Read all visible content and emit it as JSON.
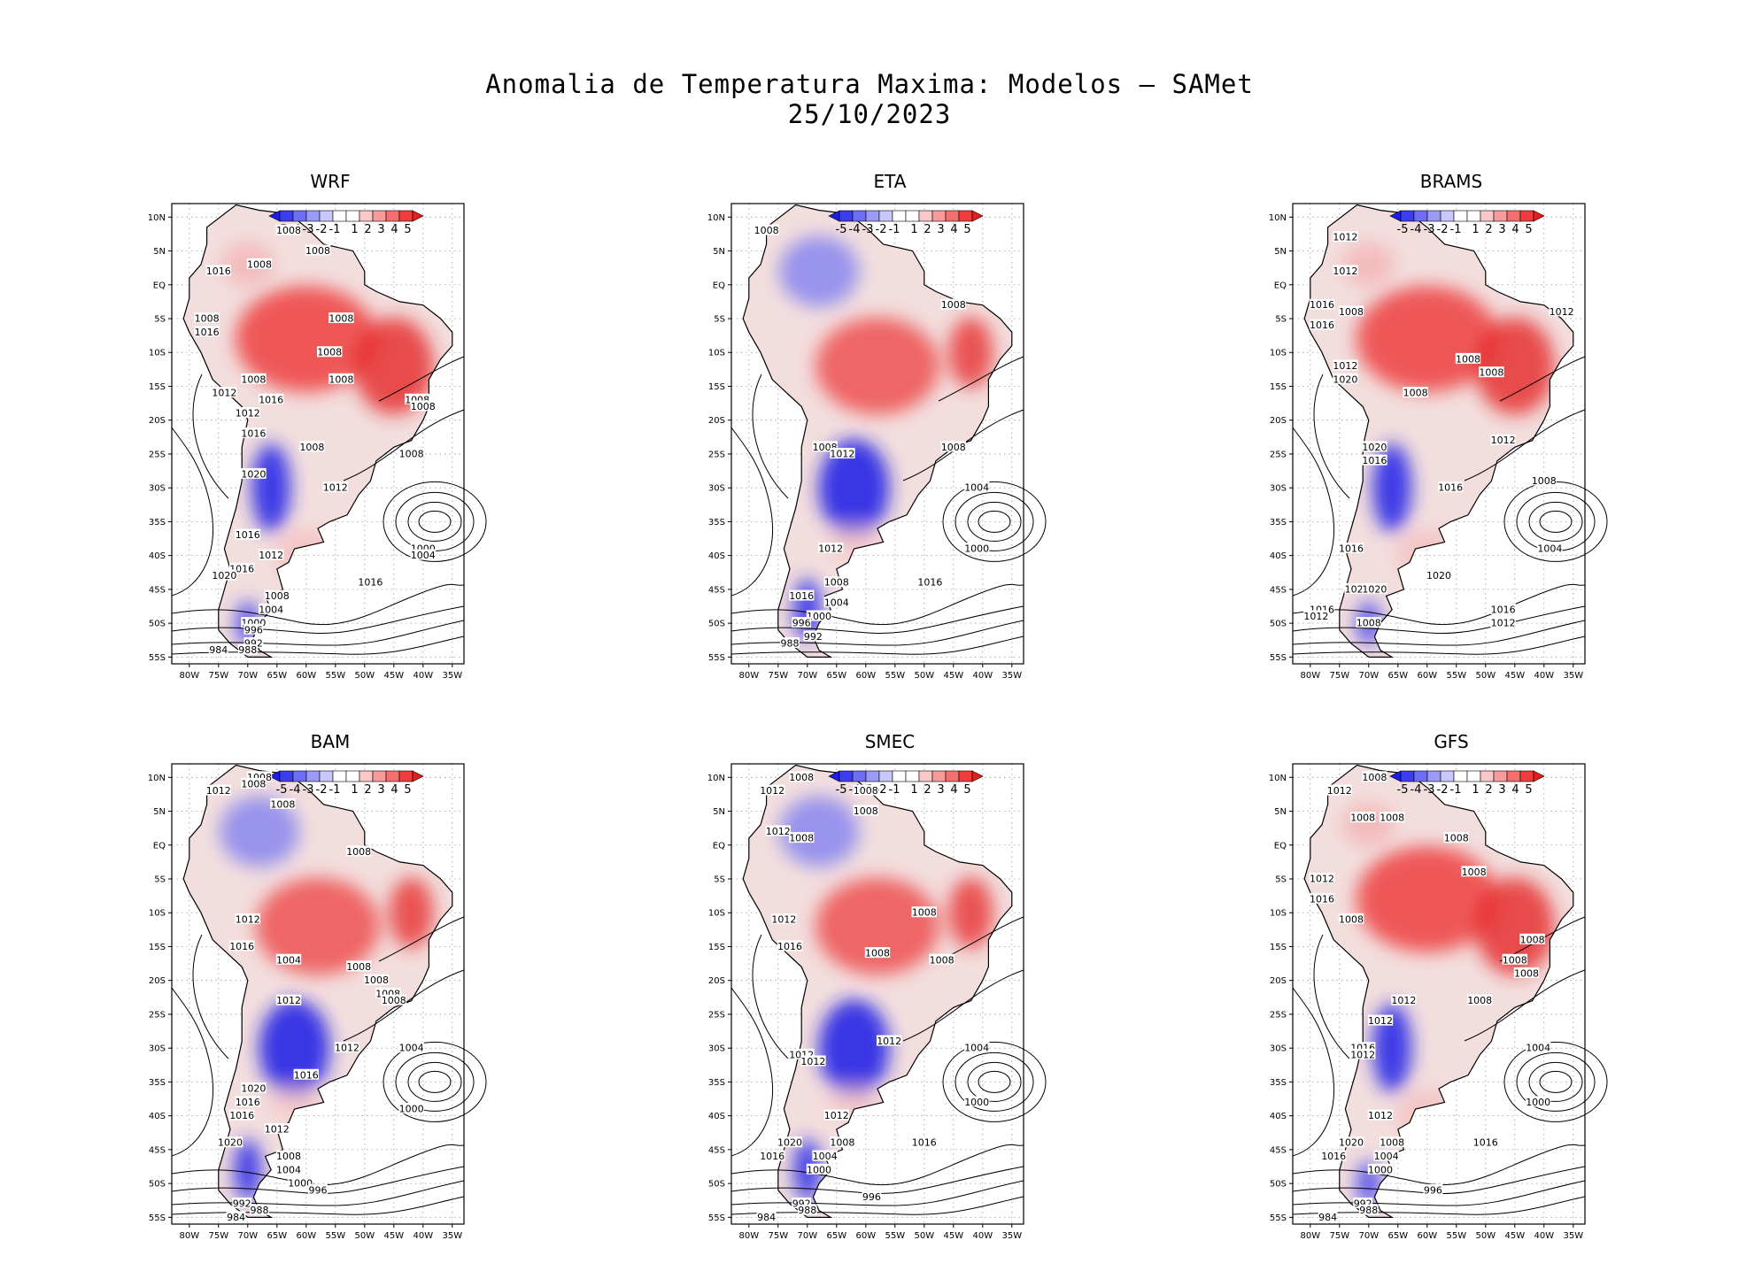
{
  "title_line1": "Anomalia de Temperatura Maxima: Modelos — SAMet",
  "title_line2": "25/10/2023",
  "lat_ticks": [
    "10N",
    "5N",
    "EQ",
    "5S",
    "10S",
    "15S",
    "20S",
    "25S",
    "30S",
    "35S",
    "40S",
    "45S",
    "50S",
    "55S"
  ],
  "lon_ticks": [
    "80W",
    "75W",
    "70W",
    "65W",
    "60W",
    "55W",
    "50W",
    "45W",
    "40W",
    "35W"
  ],
  "colorbar": {
    "labels": [
      "-5",
      "-4",
      "-3",
      "-2",
      "-1",
      "1",
      "2",
      "3",
      "4",
      "5"
    ],
    "colors": [
      "#1e1ee6",
      "#3c3cf0",
      "#6e6ef5",
      "#9b9bf7",
      "#c8c8fa",
      "#ffffff",
      "#ffffff",
      "#fac8c8",
      "#f79b9b",
      "#f56e6e",
      "#f03c3c",
      "#e61e1e"
    ]
  },
  "panels": [
    {
      "name": "WRF",
      "tone": "red",
      "labels": [
        {
          "t": "1008",
          "lon": -63,
          "lat": 8
        },
        {
          "t": "1008",
          "lon": -58,
          "lat": 5
        },
        {
          "t": "1008",
          "lon": -68,
          "lat": 3
        },
        {
          "t": "1016",
          "lon": -75,
          "lat": 2
        },
        {
          "t": "1008",
          "lon": -77,
          "lat": -5
        },
        {
          "t": "1016",
          "lon": -77,
          "lat": -7
        },
        {
          "t": "1008",
          "lon": -54,
          "lat": -5
        },
        {
          "t": "1008",
          "lon": -56,
          "lat": -10
        },
        {
          "t": "1008",
          "lon": -69,
          "lat": -14
        },
        {
          "t": "1012",
          "lon": -74,
          "lat": -16
        },
        {
          "t": "1016",
          "lon": -66,
          "lat": -17
        },
        {
          "t": "1012",
          "lon": -70,
          "lat": -19
        },
        {
          "t": "1008",
          "lon": -54,
          "lat": -14
        },
        {
          "t": "1008",
          "lon": -41,
          "lat": -17
        },
        {
          "t": "1008",
          "lon": -40,
          "lat": -18
        },
        {
          "t": "1016",
          "lon": -69,
          "lat": -22
        },
        {
          "t": "1008",
          "lon": -59,
          "lat": -24
        },
        {
          "t": "1008",
          "lon": -42,
          "lat": -25
        },
        {
          "t": "1012",
          "lon": -55,
          "lat": -30
        },
        {
          "t": "1020",
          "lon": -69,
          "lat": -28
        },
        {
          "t": "1016",
          "lon": -70,
          "lat": -37
        },
        {
          "t": "1000",
          "lon": -40,
          "lat": -39
        },
        {
          "t": "1004",
          "lon": -40,
          "lat": -40
        },
        {
          "t": "1012",
          "lon": -66,
          "lat": -40
        },
        {
          "t": "1016",
          "lon": -71,
          "lat": -42
        },
        {
          "t": "1020",
          "lon": -74,
          "lat": -43
        },
        {
          "t": "1016",
          "lon": -49,
          "lat": -44
        },
        {
          "t": "1008",
          "lon": -65,
          "lat": -46
        },
        {
          "t": "1004",
          "lon": -66,
          "lat": -48
        },
        {
          "t": "1000",
          "lon": -69,
          "lat": -50
        },
        {
          "t": "996",
          "lon": -69,
          "lat": -51
        },
        {
          "t": "992",
          "lon": -69,
          "lat": -53
        },
        {
          "t": "988",
          "lon": -70,
          "lat": -54
        },
        {
          "t": "984",
          "lon": -75,
          "lat": -54
        }
      ]
    },
    {
      "name": "ETA",
      "tone": "mixed",
      "labels": [
        {
          "t": "1008",
          "lon": -77,
          "lat": 8
        },
        {
          "t": "1008",
          "lon": -45,
          "lat": -3
        },
        {
          "t": "1008",
          "lon": -67,
          "lat": -24
        },
        {
          "t": "1012",
          "lon": -64,
          "lat": -25
        },
        {
          "t": "1008",
          "lon": -45,
          "lat": -24
        },
        {
          "t": "1004",
          "lon": -41,
          "lat": -30
        },
        {
          "t": "1000",
          "lon": -41,
          "lat": -39
        },
        {
          "t": "1012",
          "lon": -66,
          "lat": -39
        },
        {
          "t": "1008",
          "lon": -65,
          "lat": -44
        },
        {
          "t": "1016",
          "lon": -49,
          "lat": -44
        },
        {
          "t": "1016",
          "lon": -71,
          "lat": -46
        },
        {
          "t": "1004",
          "lon": -65,
          "lat": -47
        },
        {
          "t": "1000",
          "lon": -68,
          "lat": -49
        },
        {
          "t": "996",
          "lon": -71,
          "lat": -50
        },
        {
          "t": "992",
          "lon": -69,
          "lat": -52
        },
        {
          "t": "988",
          "lon": -73,
          "lat": -53
        }
      ]
    },
    {
      "name": "BRAMS",
      "tone": "red",
      "labels": [
        {
          "t": "1012",
          "lon": -74,
          "lat": 7
        },
        {
          "t": "1012",
          "lon": -74,
          "lat": 2
        },
        {
          "t": "1016",
          "lon": -78,
          "lat": -3
        },
        {
          "t": "1008",
          "lon": -73,
          "lat": -4
        },
        {
          "t": "1016",
          "lon": -78,
          "lat": -6
        },
        {
          "t": "1012",
          "lon": -37,
          "lat": -4
        },
        {
          "t": "1008",
          "lon": -53,
          "lat": -11
        },
        {
          "t": "1008",
          "lon": -49,
          "lat": -13
        },
        {
          "t": "1012",
          "lon": -74,
          "lat": -12
        },
        {
          "t": "1020",
          "lon": -74,
          "lat": -14
        },
        {
          "t": "1008",
          "lon": -62,
          "lat": -16
        },
        {
          "t": "1012",
          "lon": -47,
          "lat": -23
        },
        {
          "t": "1020",
          "lon": -69,
          "lat": -24
        },
        {
          "t": "1016",
          "lon": -69,
          "lat": -26
        },
        {
          "t": "1016",
          "lon": -56,
          "lat": -30
        },
        {
          "t": "1008",
          "lon": -40,
          "lat": -29
        },
        {
          "t": "1004",
          "lon": -39,
          "lat": -39
        },
        {
          "t": "1016",
          "lon": -73,
          "lat": -39
        },
        {
          "t": "1020",
          "lon": -58,
          "lat": -43
        },
        {
          "t": "1024",
          "lon": -72,
          "lat": -45
        },
        {
          "t": "1020",
          "lon": -69,
          "lat": -45
        },
        {
          "t": "1016",
          "lon": -78,
          "lat": -48
        },
        {
          "t": "1012",
          "lon": -79,
          "lat": -49
        },
        {
          "t": "1008",
          "lon": -70,
          "lat": -50
        },
        {
          "t": "1016",
          "lon": -47,
          "lat": -48
        },
        {
          "t": "1012",
          "lon": -47,
          "lat": -50
        }
      ]
    },
    {
      "name": "BAM",
      "tone": "mixed",
      "labels": [
        {
          "t": "1008",
          "lon": -68,
          "lat": 10
        },
        {
          "t": "1008",
          "lon": -69,
          "lat": 9
        },
        {
          "t": "1012",
          "lon": -75,
          "lat": 8
        },
        {
          "t": "1008",
          "lon": -64,
          "lat": 6
        },
        {
          "t": "1008",
          "lon": -51,
          "lat": -1
        },
        {
          "t": "1012",
          "lon": -70,
          "lat": -11
        },
        {
          "t": "1016",
          "lon": -71,
          "lat": -15
        },
        {
          "t": "1004",
          "lon": -63,
          "lat": -17
        },
        {
          "t": "1008",
          "lon": -51,
          "lat": -18
        },
        {
          "t": "1008",
          "lon": -48,
          "lat": -20
        },
        {
          "t": "1008",
          "lon": -46,
          "lat": -22
        },
        {
          "t": "1008",
          "lon": -45,
          "lat": -23
        },
        {
          "t": "1012",
          "lon": -63,
          "lat": -23
        },
        {
          "t": "1012",
          "lon": -53,
          "lat": -30
        },
        {
          "t": "1004",
          "lon": -42,
          "lat": -30
        },
        {
          "t": "1016",
          "lon": -60,
          "lat": -34
        },
        {
          "t": "1020",
          "lon": -69,
          "lat": -36
        },
        {
          "t": "1016",
          "lon": -70,
          "lat": -38
        },
        {
          "t": "1016",
          "lon": -71,
          "lat": -40
        },
        {
          "t": "1000",
          "lon": -42,
          "lat": -39
        },
        {
          "t": "1012",
          "lon": -65,
          "lat": -42
        },
        {
          "t": "1020",
          "lon": -73,
          "lat": -44
        },
        {
          "t": "1008",
          "lon": -63,
          "lat": -46
        },
        {
          "t": "1004",
          "lon": -63,
          "lat": -48
        },
        {
          "t": "1000",
          "lon": -61,
          "lat": -50
        },
        {
          "t": "996",
          "lon": -58,
          "lat": -51
        },
        {
          "t": "992",
          "lon": -71,
          "lat": -53
        },
        {
          "t": "988",
          "lon": -68,
          "lat": -54
        },
        {
          "t": "984",
          "lon": -72,
          "lat": -55
        }
      ]
    },
    {
      "name": "SMEC",
      "tone": "mixed",
      "labels": [
        {
          "t": "1008",
          "lon": -71,
          "lat": 10
        },
        {
          "t": "1012",
          "lon": -76,
          "lat": 8
        },
        {
          "t": "1008",
          "lon": -60,
          "lat": 8
        },
        {
          "t": "1008",
          "lon": -60,
          "lat": 5
        },
        {
          "t": "1012",
          "lon": -75,
          "lat": 2
        },
        {
          "t": "1008",
          "lon": -71,
          "lat": 1
        },
        {
          "t": "1012",
          "lon": -74,
          "lat": -11
        },
        {
          "t": "1008",
          "lon": -50,
          "lat": -10
        },
        {
          "t": "1016",
          "lon": -73,
          "lat": -15
        },
        {
          "t": "1008",
          "lon": -58,
          "lat": -16
        },
        {
          "t": "1008",
          "lon": -47,
          "lat": -17
        },
        {
          "t": "1012",
          "lon": -56,
          "lat": -29
        },
        {
          "t": "1012",
          "lon": -71,
          "lat": -31
        },
        {
          "t": "1012",
          "lon": -69,
          "lat": -32
        },
        {
          "t": "1004",
          "lon": -41,
          "lat": -30
        },
        {
          "t": "1000",
          "lon": -41,
          "lat": -38
        },
        {
          "t": "1012",
          "lon": -65,
          "lat": -40
        },
        {
          "t": "1008",
          "lon": -64,
          "lat": -44
        },
        {
          "t": "1016",
          "lon": -50,
          "lat": -44
        },
        {
          "t": "1020",
          "lon": -73,
          "lat": -44
        },
        {
          "t": "1016",
          "lon": -76,
          "lat": -46
        },
        {
          "t": "1004",
          "lon": -67,
          "lat": -46
        },
        {
          "t": "1000",
          "lon": -68,
          "lat": -48
        },
        {
          "t": "996",
          "lon": -59,
          "lat": -52
        },
        {
          "t": "992",
          "lon": -71,
          "lat": -53
        },
        {
          "t": "988",
          "lon": -70,
          "lat": -54
        },
        {
          "t": "984",
          "lon": -77,
          "lat": -55
        }
      ]
    },
    {
      "name": "GFS",
      "tone": "red",
      "labels": [
        {
          "t": "1008",
          "lon": -69,
          "lat": 10
        },
        {
          "t": "1012",
          "lon": -75,
          "lat": 8
        },
        {
          "t": "1008",
          "lon": -71,
          "lat": 4
        },
        {
          "t": "1008",
          "lon": -66,
          "lat": 4
        },
        {
          "t": "1008",
          "lon": -55,
          "lat": 1
        },
        {
          "t": "1008",
          "lon": -52,
          "lat": -4
        },
        {
          "t": "1012",
          "lon": -78,
          "lat": -5
        },
        {
          "t": "1016",
          "lon": -78,
          "lat": -8
        },
        {
          "t": "1008",
          "lon": -73,
          "lat": -11
        },
        {
          "t": "1008",
          "lon": -42,
          "lat": -14
        },
        {
          "t": "1008",
          "lon": -45,
          "lat": -17
        },
        {
          "t": "1008",
          "lon": -43,
          "lat": -19
        },
        {
          "t": "1012",
          "lon": -64,
          "lat": -23
        },
        {
          "t": "1008",
          "lon": -51,
          "lat": -23
        },
        {
          "t": "1012",
          "lon": -68,
          "lat": -26
        },
        {
          "t": "1016",
          "lon": -71,
          "lat": -30
        },
        {
          "t": "1012",
          "lon": -71,
          "lat": -31
        },
        {
          "t": "1004",
          "lon": -41,
          "lat": -30
        },
        {
          "t": "1000",
          "lon": -41,
          "lat": -38
        },
        {
          "t": "1012",
          "lon": -68,
          "lat": -40
        },
        {
          "t": "1008",
          "lon": -66,
          "lat": -44
        },
        {
          "t": "1016",
          "lon": -50,
          "lat": -44
        },
        {
          "t": "1020",
          "lon": -73,
          "lat": -44
        },
        {
          "t": "1016",
          "lon": -76,
          "lat": -46
        },
        {
          "t": "1004",
          "lon": -67,
          "lat": -46
        },
        {
          "t": "1000",
          "lon": -68,
          "lat": -48
        },
        {
          "t": "996",
          "lon": -59,
          "lat": -51
        },
        {
          "t": "992",
          "lon": -71,
          "lat": -53
        },
        {
          "t": "988",
          "lon": -70,
          "lat": -54
        },
        {
          "t": "984",
          "lon": -77,
          "lat": -55
        }
      ]
    }
  ]
}
